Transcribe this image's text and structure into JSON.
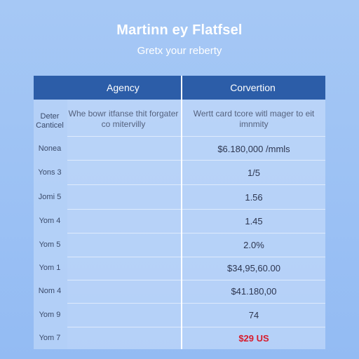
{
  "header": {
    "title": "Martinn ey Flatfsel",
    "subtitle": "Gretx your reberty"
  },
  "table": {
    "columns": [
      "Agency",
      "Corvertion"
    ],
    "intro_row": {
      "label": "Deter Canticel",
      "agency": "Whe bowr itfanse thit forgater co mitervilly",
      "conversion": "Wertt card tcore witl mager to eit imnmity"
    },
    "rows": [
      {
        "label": "Nonea",
        "value": "$6.180,000 /mmls"
      },
      {
        "label": "Yons 3",
        "value": "1/5"
      },
      {
        "label": "Jomi 5",
        "value": "1.56"
      },
      {
        "label": "Yom 4",
        "value": "1.45"
      },
      {
        "label": "Yom 5",
        "value": "2.0%"
      },
      {
        "label": "Yom 1",
        "value": "$34,95,60.00"
      },
      {
        "label": "Nom 4",
        "value": "$41.180,00"
      },
      {
        "label": "Yom 9",
        "value": "74"
      },
      {
        "label": "Yom 7",
        "value": "$29 US"
      }
    ]
  },
  "colors": {
    "header_bg": "#2c5da8",
    "page_bg": "#a6c8f5",
    "highlight": "#d81b2c"
  }
}
